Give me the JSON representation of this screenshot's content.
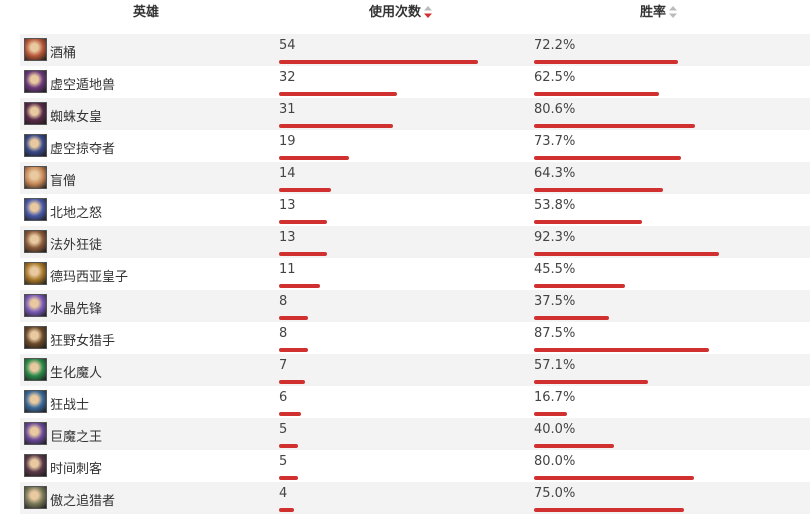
{
  "header": {
    "hero_label": "英雄",
    "uses_label": "使用次数",
    "rate_label": "胜率"
  },
  "colors": {
    "bar": "#d13030",
    "sort_active": "#d13030",
    "sort_inactive": "#bbbbbb",
    "row_alt": "#f3f3f3"
  },
  "rows": [
    {
      "name": "酒桶",
      "uses": "54",
      "uses_frac": 1.0,
      "rate": "72.2%",
      "rate_frac": 0.722,
      "avatar": "#b8583a"
    },
    {
      "name": "虚空遁地兽",
      "uses": "32",
      "uses_frac": 0.593,
      "rate": "62.5%",
      "rate_frac": 0.625,
      "avatar": "#6a3a7a"
    },
    {
      "name": "蜘蛛女皇",
      "uses": "31",
      "uses_frac": 0.574,
      "rate": "80.6%",
      "rate_frac": 0.806,
      "avatar": "#5a2a4a"
    },
    {
      "name": "虚空掠夺者",
      "uses": "19",
      "uses_frac": 0.352,
      "rate": "73.7%",
      "rate_frac": 0.737,
      "avatar": "#3a4a8a"
    },
    {
      "name": "盲僧",
      "uses": "14",
      "uses_frac": 0.259,
      "rate": "64.3%",
      "rate_frac": 0.643,
      "avatar": "#c98a5a"
    },
    {
      "name": "北地之怒",
      "uses": "13",
      "uses_frac": 0.241,
      "rate": "53.8%",
      "rate_frac": 0.538,
      "avatar": "#4a5aa8"
    },
    {
      "name": "法外狂徒",
      "uses": "13",
      "uses_frac": 0.241,
      "rate": "92.3%",
      "rate_frac": 0.923,
      "avatar": "#8a5a3a"
    },
    {
      "name": "德玛西亚皇子",
      "uses": "11",
      "uses_frac": 0.204,
      "rate": "45.5%",
      "rate_frac": 0.455,
      "avatar": "#a8782a"
    },
    {
      "name": "水晶先锋",
      "uses": "8",
      "uses_frac": 0.148,
      "rate": "37.5%",
      "rate_frac": 0.375,
      "avatar": "#7a5ab8"
    },
    {
      "name": "狂野女猎手",
      "uses": "8",
      "uses_frac": 0.148,
      "rate": "87.5%",
      "rate_frac": 0.875,
      "avatar": "#6a4a2a"
    },
    {
      "name": "生化魔人",
      "uses": "7",
      "uses_frac": 0.13,
      "rate": "57.1%",
      "rate_frac": 0.571,
      "avatar": "#2a8a4a"
    },
    {
      "name": "狂战士",
      "uses": "6",
      "uses_frac": 0.111,
      "rate": "16.7%",
      "rate_frac": 0.167,
      "avatar": "#3a6a9a"
    },
    {
      "name": "巨魔之王",
      "uses": "5",
      "uses_frac": 0.093,
      "rate": "40.0%",
      "rate_frac": 0.4,
      "avatar": "#6a4a9a"
    },
    {
      "name": "时间刺客",
      "uses": "5",
      "uses_frac": 0.093,
      "rate": "80.0%",
      "rate_frac": 0.8,
      "avatar": "#5a3a4a"
    },
    {
      "name": "傲之追猎者",
      "uses": "4",
      "uses_frac": 0.074,
      "rate": "75.0%",
      "rate_frac": 0.75,
      "avatar": "#7a7a5a"
    }
  ]
}
